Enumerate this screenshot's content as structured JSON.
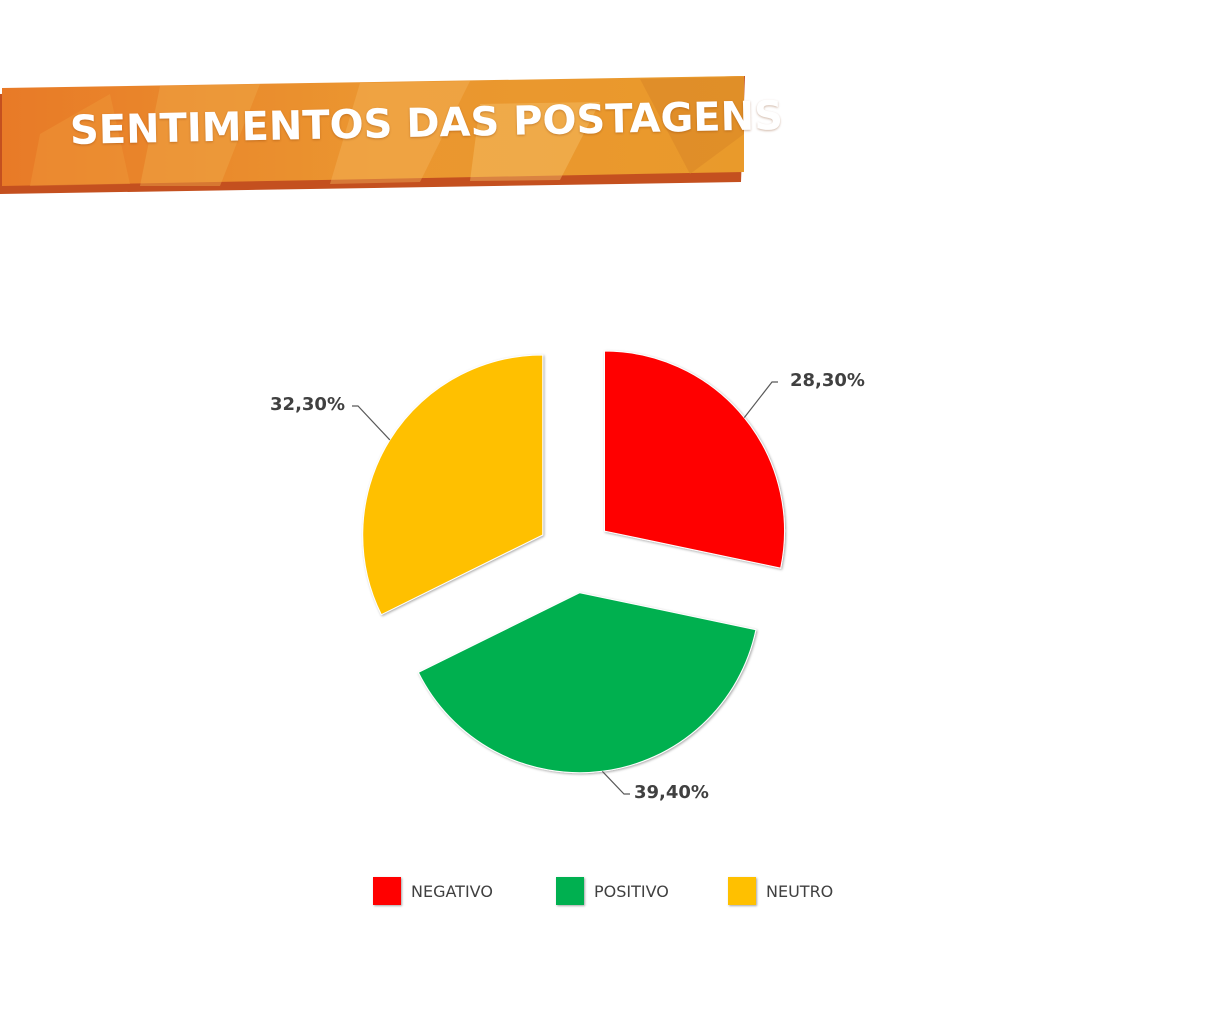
{
  "header": {
    "title": "SENTIMENTOS DAS POSTAGENS"
  },
  "chart_data": {
    "type": "pie",
    "title": "SENTIMENTOS DAS POSTAGENS",
    "start_angle_deg": 0,
    "direction": "clockwise",
    "exploded": true,
    "legend_position": "bottom",
    "slices": [
      {
        "label": "NEGATIVO",
        "value": 28.3,
        "value_label": "28,30%",
        "color": "#ff0000"
      },
      {
        "label": "POSITIVO",
        "value": 39.4,
        "value_label": "39,40%",
        "color": "#00b050"
      },
      {
        "label": "NEUTRO",
        "value": 32.3,
        "value_label": "32,30%",
        "color": "#ffc000"
      }
    ]
  },
  "colors": {
    "banner_primary": "#e8882a",
    "banner_shadow": "#c9531c",
    "label_text": "#404040",
    "leader_line": "#595959"
  }
}
